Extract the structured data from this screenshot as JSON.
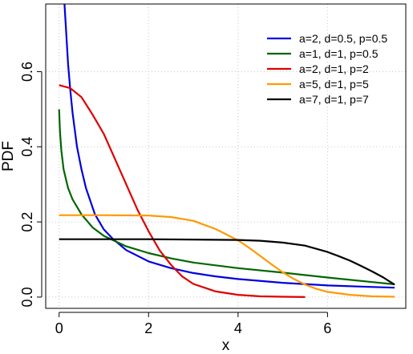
{
  "chart_data": {
    "type": "line",
    "title": "",
    "xlabel": "x",
    "ylabel": "PDF",
    "xlim": [
      -0.3,
      7.75
    ],
    "ylim": [
      -0.03,
      0.78
    ],
    "x_ticks": [
      0,
      2,
      4,
      6
    ],
    "y_ticks": [
      0.0,
      0.2,
      0.4,
      0.6
    ],
    "x_tick_labels": [
      "0",
      "2",
      "4",
      "6"
    ],
    "y_tick_labels": [
      "0.0",
      "0.2",
      "0.4",
      "0.6"
    ],
    "grid": true,
    "legend_position": "top-right",
    "series": [
      {
        "name": "a=2, d=0.5, p=0.5",
        "color": "#0000dd",
        "x": [
          0.12,
          0.15,
          0.2,
          0.25,
          0.3,
          0.4,
          0.5,
          0.6,
          0.8,
          1.0,
          1.2,
          1.5,
          2.0,
          2.5,
          3.0,
          3.5,
          4.0,
          5.0,
          6.0,
          7.0,
          7.5
        ],
        "y": [
          0.78,
          0.72,
          0.62,
          0.55,
          0.49,
          0.4,
          0.34,
          0.29,
          0.22,
          0.18,
          0.155,
          0.125,
          0.095,
          0.077,
          0.064,
          0.055,
          0.048,
          0.038,
          0.031,
          0.027,
          0.025
        ]
      },
      {
        "name": "a=1, d=1, p=0.5",
        "color": "#006600",
        "x": [
          0.0,
          0.02,
          0.05,
          0.1,
          0.2,
          0.3,
          0.5,
          0.75,
          1.0,
          1.5,
          2.0,
          2.5,
          3.0,
          4.0,
          5.0,
          6.0,
          7.0,
          7.5
        ],
        "y": [
          0.5,
          0.44,
          0.39,
          0.34,
          0.29,
          0.26,
          0.22,
          0.185,
          0.163,
          0.135,
          0.117,
          0.103,
          0.092,
          0.077,
          0.065,
          0.052,
          0.04,
          0.034
        ]
      },
      {
        "name": "a=2, d=1, p=2",
        "color": "#dd0000",
        "x": [
          0.0,
          0.25,
          0.5,
          0.75,
          1.0,
          1.25,
          1.5,
          1.75,
          2.0,
          2.25,
          2.5,
          2.75,
          3.0,
          3.5,
          4.0,
          4.5,
          5.0,
          5.5
        ],
        "y": [
          0.564,
          0.556,
          0.532,
          0.485,
          0.434,
          0.367,
          0.3,
          0.233,
          0.175,
          0.124,
          0.086,
          0.055,
          0.035,
          0.015,
          0.006,
          0.002,
          0.001,
          0.0
        ]
      },
      {
        "name": "a=5, d=1, p=5",
        "color": "#ff9900",
        "x": [
          0.0,
          1.0,
          2.0,
          2.5,
          3.0,
          3.5,
          4.0,
          4.25,
          4.5,
          4.75,
          5.0,
          5.25,
          5.5,
          5.75,
          6.0,
          6.5,
          7.0,
          7.5
        ],
        "y": [
          0.218,
          0.218,
          0.217,
          0.213,
          0.203,
          0.181,
          0.151,
          0.131,
          0.109,
          0.087,
          0.066,
          0.048,
          0.033,
          0.022,
          0.014,
          0.006,
          0.002,
          0.001
        ]
      },
      {
        "name": "a=7, d=1, p=7",
        "color": "#000000",
        "x": [
          0.0,
          1.0,
          2.0,
          3.0,
          4.0,
          4.5,
          5.0,
          5.5,
          6.0,
          6.25,
          6.5,
          6.75,
          7.0,
          7.25,
          7.5
        ],
        "y": [
          0.154,
          0.154,
          0.154,
          0.153,
          0.152,
          0.15,
          0.145,
          0.137,
          0.12,
          0.109,
          0.097,
          0.083,
          0.068,
          0.052,
          0.033
        ]
      }
    ]
  }
}
